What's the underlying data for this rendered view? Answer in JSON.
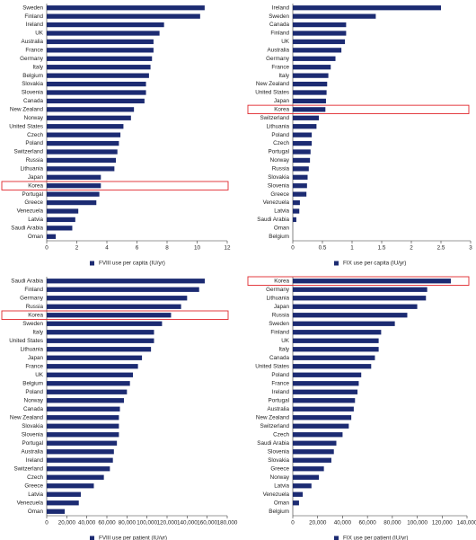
{
  "chart_data": [
    {
      "type": "bar",
      "orientation": "horizontal",
      "highlight": "Korea",
      "categories": [
        "Sweden",
        "Finland",
        "Ireland",
        "UK",
        "Australia",
        "France",
        "Germany",
        "Italy",
        "Belgium",
        "Slovakia",
        "Slovenia",
        "Canada",
        "New Zealand",
        "Norway",
        "United States",
        "Czech",
        "Poland",
        "Switzerland",
        "Russia",
        "Lithuania",
        "Japan",
        "Korea",
        "Portugal",
        "Greece",
        "Venezuela",
        "Latvia",
        "Saudi Arabia",
        "Oman"
      ],
      "series": [
        {
          "name": "FVIII use per capita (IU/yr)",
          "color": "#1c2b72",
          "values": [
            10.5,
            10.2,
            7.8,
            7.5,
            7.1,
            7.1,
            7.0,
            6.9,
            6.8,
            6.6,
            6.6,
            6.5,
            5.8,
            5.6,
            5.1,
            4.9,
            4.8,
            4.7,
            4.6,
            4.5,
            3.6,
            3.6,
            3.5,
            3.3,
            2.1,
            1.9,
            1.7,
            0.6
          ]
        }
      ],
      "xlim": [
        0,
        12
      ],
      "xticks": [
        0,
        2,
        4,
        6,
        8,
        10,
        12
      ]
    },
    {
      "type": "bar",
      "orientation": "horizontal",
      "highlight": "Korea",
      "categories": [
        "Ireland",
        "Sweden",
        "Canada",
        "Finland",
        "UK",
        "Australia",
        "Germany",
        "France",
        "Italy",
        "New Zealand",
        "United States",
        "Japan",
        "Korea",
        "Switzerland",
        "Lithuania",
        "Poland",
        "Czech",
        "Portugal",
        "Norway",
        "Russia",
        "Slovakia",
        "Slovenia",
        "Greece",
        "Venezuela",
        "Latvia",
        "Saudi Arabia",
        "Oman",
        "Belgium"
      ],
      "series": [
        {
          "name": "FIX use per capita (IU/yr)",
          "color": "#1c2b72",
          "values": [
            2.5,
            1.4,
            0.9,
            0.9,
            0.88,
            0.82,
            0.72,
            0.64,
            0.6,
            0.58,
            0.57,
            0.56,
            0.55,
            0.44,
            0.4,
            0.32,
            0.32,
            0.3,
            0.29,
            0.27,
            0.25,
            0.24,
            0.23,
            0.12,
            0.11,
            0.06,
            0,
            0
          ]
        }
      ],
      "xlim": [
        0,
        3
      ],
      "xticks": [
        0,
        0.5,
        1,
        1.5,
        2,
        2.5,
        3
      ]
    },
    {
      "type": "bar",
      "orientation": "horizontal",
      "highlight": "Korea",
      "categories": [
        "Saudi Arabia",
        "Finland",
        "Germany",
        "Russia",
        "Korea",
        "Sweden",
        "Italy",
        "United States",
        "Lithuania",
        "Japan",
        "France",
        "UK",
        "Belgium",
        "Poland",
        "Norway",
        "Canada",
        "New Zealand",
        "Slovakia",
        "Slovenia",
        "Portugal",
        "Australia",
        "Ireland",
        "Switzerland",
        "Czech",
        "Greece",
        "Latvia",
        "Venezuela",
        "Oman"
      ],
      "series": [
        {
          "name": "FVIII use per patient (IU/yr)",
          "color": "#1c2b72",
          "values": [
            157600,
            152000,
            140000,
            134000,
            124000,
            115000,
            107000,
            107000,
            104000,
            95000,
            91000,
            86000,
            83000,
            80000,
            77000,
            73000,
            72000,
            72000,
            72000,
            70000,
            67000,
            66000,
            63000,
            57000,
            47000,
            34000,
            32000,
            18000
          ]
        }
      ],
      "xlim": [
        0,
        180000
      ],
      "xticks": [
        0,
        {
          "value": 20000,
          "label": "20,000"
        },
        {
          "value": 40000,
          "label": "40,000"
        },
        {
          "value": 60000,
          "label": "60,000"
        },
        {
          "value": 80000,
          "label": "80,000"
        },
        {
          "value": 100000,
          "label": "100,000"
        },
        {
          "value": 120000,
          "label": "120,000"
        },
        {
          "value": 140000,
          "label": "140,000"
        },
        {
          "value": 160000,
          "label": "160,000"
        },
        {
          "value": 180000,
          "label": "180,000"
        }
      ]
    },
    {
      "type": "bar",
      "orientation": "horizontal",
      "highlight": "Korea",
      "categories": [
        "Korea",
        "Germany",
        "Lithuania",
        "Japan",
        "Russia",
        "Sweden",
        "Finland",
        "UK",
        "Italy",
        "Canada",
        "United States",
        "Poland",
        "France",
        "Ireland",
        "Portugal",
        "Australia",
        "New Zealand",
        "Switzerland",
        "Czech",
        "Saudi Arabia",
        "Slovenia",
        "Slovakia",
        "Greece",
        "Norway",
        "Latvia",
        "Venezuela",
        "Oman",
        "Belgium"
      ],
      "series": [
        {
          "name": "FIX use per patient (IU/yr)",
          "color": "#1c2b72",
          "values": [
            127000,
            108000,
            107000,
            100000,
            92000,
            82000,
            71000,
            69000,
            69000,
            66000,
            63000,
            55000,
            53000,
            52000,
            50000,
            49000,
            47000,
            45000,
            40000,
            35000,
            33000,
            31000,
            25000,
            21000,
            15000,
            8000,
            5000,
            0
          ]
        }
      ],
      "xlim": [
        0,
        140000
      ],
      "xticks": [
        0,
        {
          "value": 20000,
          "label": "20,000"
        },
        {
          "value": 40000,
          "label": "40,000"
        },
        {
          "value": 60000,
          "label": "60,000"
        },
        {
          "value": 80000,
          "label": "80,000"
        },
        {
          "value": 100000,
          "label": "100,000"
        },
        {
          "value": 120000,
          "label": "120,000"
        },
        {
          "value": 140000,
          "label": "140,000"
        }
      ]
    }
  ]
}
